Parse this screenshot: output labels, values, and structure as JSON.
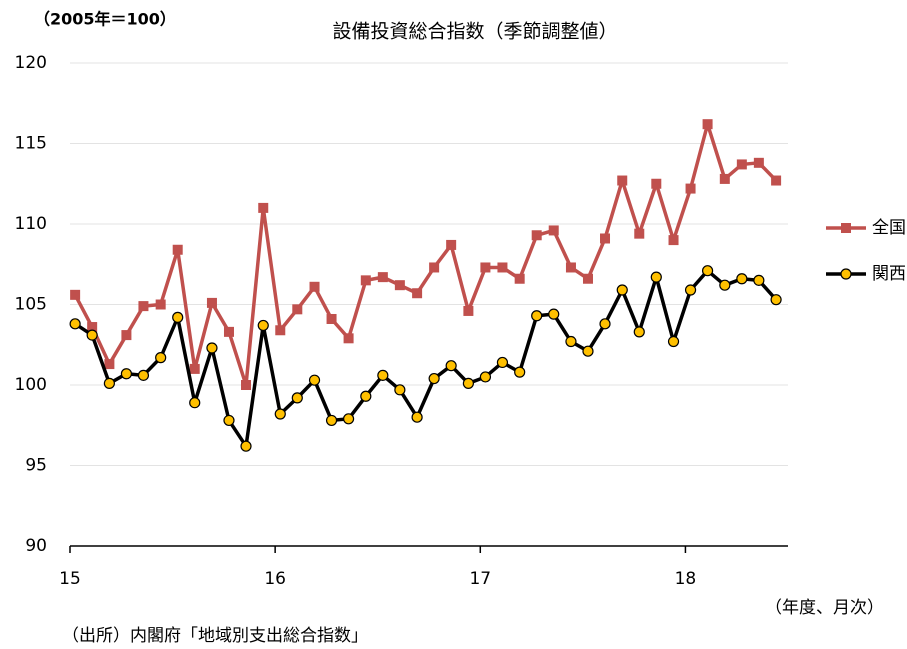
{
  "chart_data": {
    "type": "line",
    "title": "設備投資総合指数（季節調整値）",
    "y_unit_note": "（2005年＝100）",
    "xlabel": "（年度、月次）",
    "source": "（出所）内閣府「地域別支出総合指数」",
    "x": [
      15.025,
      15.108,
      15.192,
      15.275,
      15.358,
      15.442,
      15.525,
      15.608,
      15.692,
      15.775,
      15.858,
      15.942,
      16.025,
      16.108,
      16.192,
      16.275,
      16.358,
      16.442,
      16.525,
      16.608,
      16.692,
      16.775,
      16.858,
      16.942,
      17.025,
      17.108,
      17.192,
      17.275,
      17.358,
      17.442,
      17.525,
      17.608,
      17.692,
      17.775,
      17.858,
      17.942,
      18.025,
      18.108,
      18.192,
      18.275,
      18.358,
      18.442
    ],
    "series": [
      {
        "name": "全国",
        "color": "#c0504d",
        "marker": "square",
        "values": [
          105.6,
          103.6,
          101.3,
          103.1,
          104.9,
          105.0,
          108.4,
          101.0,
          105.1,
          103.3,
          100.0,
          111.0,
          103.4,
          104.7,
          106.1,
          104.1,
          102.9,
          106.5,
          106.7,
          106.2,
          105.7,
          107.3,
          108.7,
          104.6,
          107.3,
          107.3,
          106.6,
          109.3,
          109.6,
          107.3,
          106.6,
          109.1,
          112.7,
          109.4,
          112.5,
          109.0,
          112.2,
          116.2,
          112.8,
          113.7,
          113.8,
          112.7
        ]
      },
      {
        "name": "関西",
        "color": "#000000",
        "marker_color": "#ffc000",
        "marker": "circle",
        "values": [
          103.8,
          103.1,
          100.1,
          100.7,
          100.6,
          101.7,
          104.2,
          98.9,
          102.3,
          97.8,
          96.2,
          103.7,
          98.2,
          99.2,
          100.3,
          97.8,
          97.9,
          99.3,
          100.6,
          99.7,
          98.0,
          100.4,
          101.2,
          100.1,
          100.5,
          101.4,
          100.8,
          104.3,
          104.4,
          102.7,
          102.1,
          103.8,
          105.9,
          103.3,
          106.7,
          102.7,
          105.9,
          107.1,
          106.2,
          106.6,
          106.5,
          105.3
        ]
      }
    ],
    "xlim": [
      15,
      18.5
    ],
    "xticks": [
      15,
      16,
      17,
      18
    ],
    "ylim": [
      90,
      120
    ],
    "yticks": [
      90,
      95,
      100,
      105,
      110,
      115,
      120
    ],
    "grid": true,
    "legend": "right"
  }
}
